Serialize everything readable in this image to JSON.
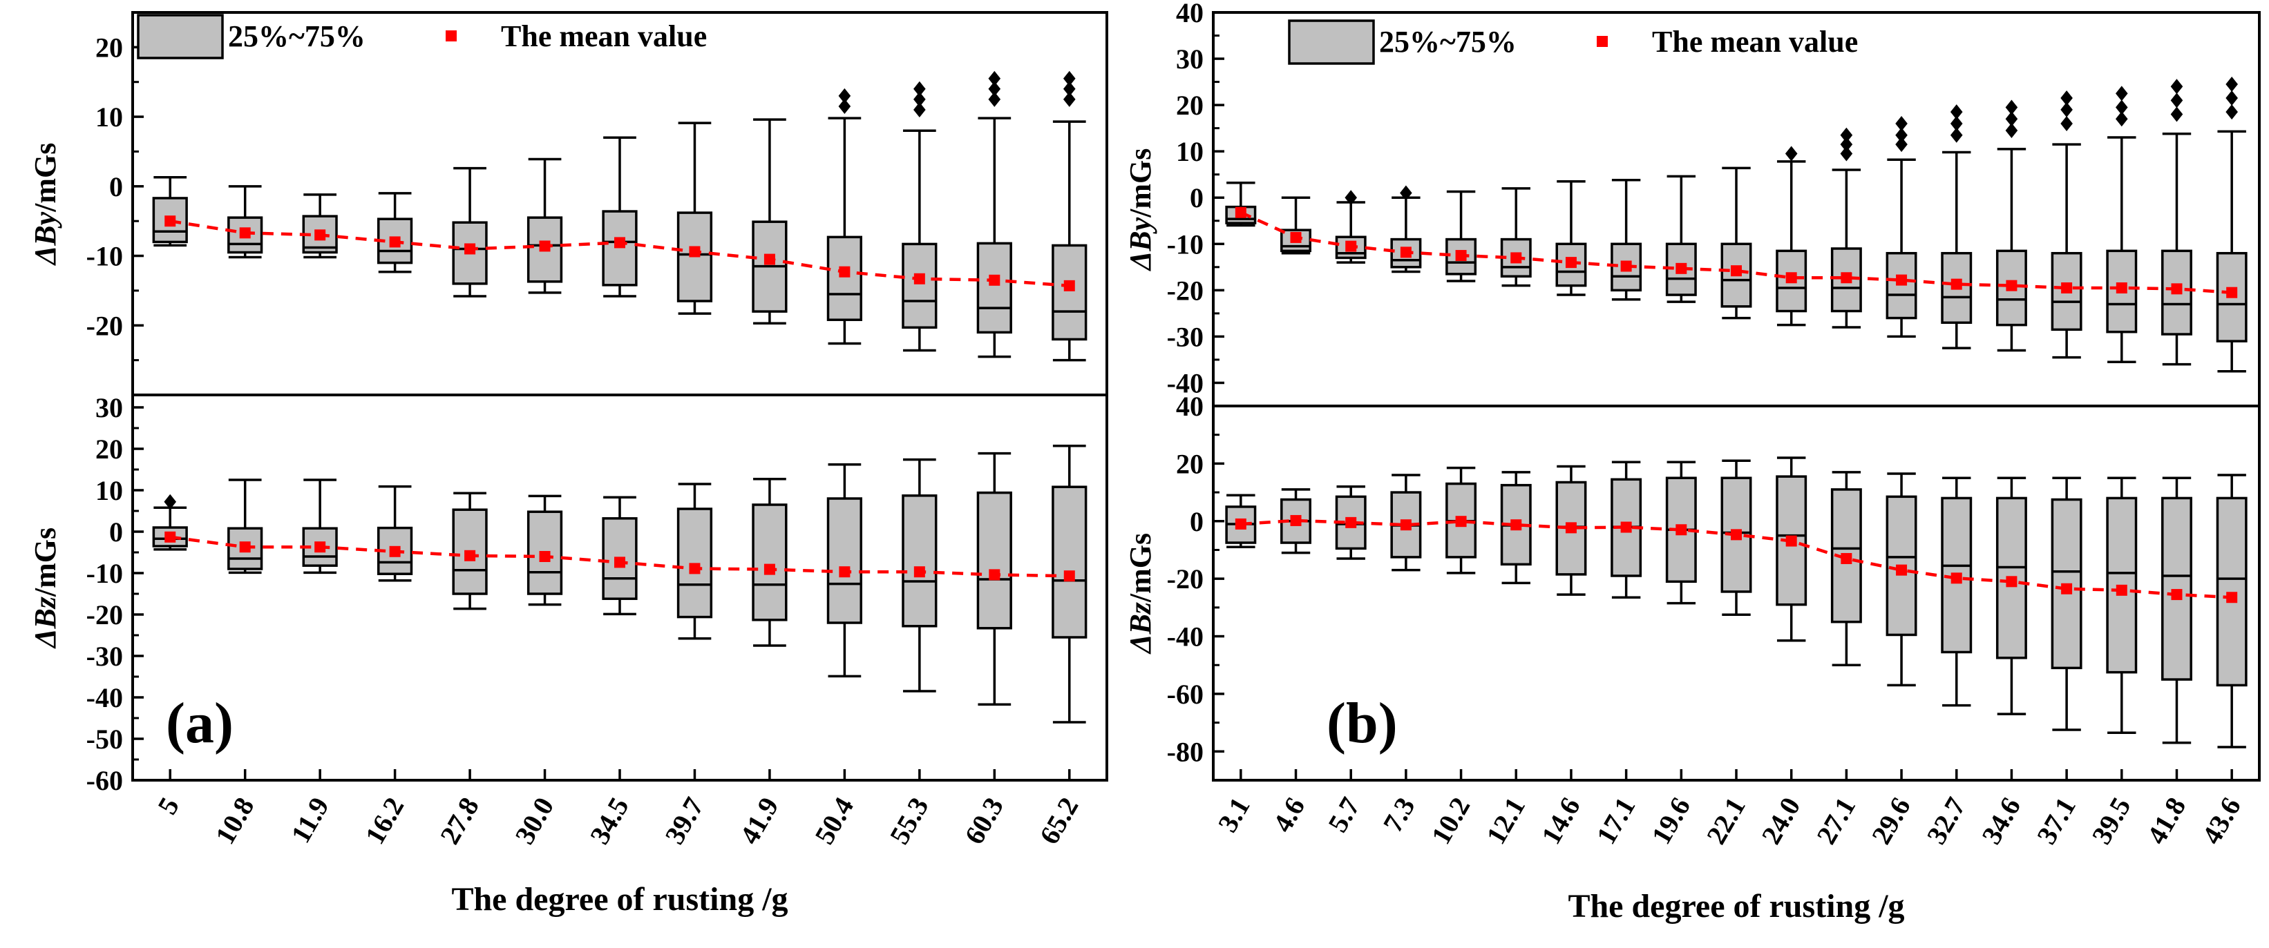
{
  "figure": {
    "legend": {
      "box_label": "25%~75%",
      "mean_label": "The mean value"
    },
    "colors": {
      "box_fill": "#c0c0c0",
      "mean": "#ff0000",
      "axis": "#000000"
    }
  },
  "chart_data": [
    {
      "type": "box",
      "panel": "(a)",
      "xlabel": "The degree of rusting /g",
      "categories": [
        "5",
        "10.8",
        "11.9",
        "16.2",
        "27.8",
        "30.0",
        "34.5",
        "39.7",
        "41.9",
        "50.4",
        "55.3",
        "60.3",
        "65.2"
      ],
      "subplots": [
        {
          "ylabel_symbol": "ΔBy",
          "ylabel_unit": "/mGs",
          "ylim": [
            -30,
            25
          ],
          "yticks": [
            -20,
            -10,
            0,
            10,
            20
          ],
          "tick_labels": [
            "-20",
            "-10",
            "0",
            "10",
            "20"
          ],
          "boxes": [
            {
              "low": -8.5,
              "q1": -8,
              "median": -6.5,
              "q3": -1.7,
              "high": 1.3,
              "mean": -5,
              "outliers": []
            },
            {
              "low": -10.2,
              "q1": -9.5,
              "median": -8.3,
              "q3": -4.5,
              "high": 0,
              "mean": -6.7,
              "outliers": []
            },
            {
              "low": -10.2,
              "q1": -9.5,
              "median": -8.8,
              "q3": -4.3,
              "high": -1.2,
              "mean": -7,
              "outliers": []
            },
            {
              "low": -12.3,
              "q1": -11,
              "median": -9.3,
              "q3": -4.7,
              "high": -1,
              "mean": -8,
              "outliers": []
            },
            {
              "low": -15.8,
              "q1": -14,
              "median": -9,
              "q3": -5.2,
              "high": 2.6,
              "mean": -9,
              "outliers": []
            },
            {
              "low": -15.3,
              "q1": -13.7,
              "median": -8.5,
              "q3": -4.5,
              "high": 3.9,
              "mean": -8.6,
              "outliers": []
            },
            {
              "low": -15.8,
              "q1": -14.2,
              "median": -8,
              "q3": -3.6,
              "high": 7,
              "mean": -8.1,
              "outliers": []
            },
            {
              "low": -18.3,
              "q1": -16.5,
              "median": -9.8,
              "q3": -3.8,
              "high": 9.1,
              "mean": -9.4,
              "outliers": []
            },
            {
              "low": -19.7,
              "q1": -18,
              "median": -11.5,
              "q3": -5.1,
              "high": 9.6,
              "mean": -10.5,
              "outliers": []
            },
            {
              "low": -22.6,
              "q1": -19.2,
              "median": -15.5,
              "q3": -7.3,
              "high": 9.8,
              "mean": -12.3,
              "outliers": [
                11.5,
                13
              ]
            },
            {
              "low": -23.6,
              "q1": -20.3,
              "median": -16.5,
              "q3": -8.3,
              "high": 8,
              "mean": -13.3,
              "outliers": [
                11,
                12.5,
                14
              ]
            },
            {
              "low": -24.5,
              "q1": -21,
              "median": -17.5,
              "q3": -8.2,
              "high": 9.8,
              "mean": -13.5,
              "outliers": [
                12.5,
                14,
                15.5
              ]
            },
            {
              "low": -25,
              "q1": -22,
              "median": -18,
              "q3": -8.5,
              "high": 9.3,
              "mean": -14.3,
              "outliers": [
                12.5,
                14,
                15.5
              ]
            }
          ]
        },
        {
          "ylabel_symbol": "ΔBz",
          "ylabel_unit": "/mGs",
          "ylim": [
            -60,
            33
          ],
          "yticks": [
            -60,
            -50,
            -40,
            -30,
            -20,
            -10,
            0,
            10,
            20,
            30
          ],
          "tick_labels": [
            "-60",
            "-50",
            "-40",
            "-30",
            "-20",
            "-10",
            "0",
            "10",
            "20",
            "30"
          ],
          "boxes": [
            {
              "low": -4.3,
              "q1": -3.5,
              "median": -1.7,
              "q3": 1,
              "high": 5.8,
              "mean": -1.3,
              "outliers": [
                7.2
              ]
            },
            {
              "low": -9.9,
              "q1": -9,
              "median": -6.5,
              "q3": 0.8,
              "high": 12.5,
              "mean": -3.7,
              "outliers": []
            },
            {
              "low": -9.9,
              "q1": -8.2,
              "median": -6,
              "q3": 0.8,
              "high": 12.5,
              "mean": -3.7,
              "outliers": []
            },
            {
              "low": -11.8,
              "q1": -10.2,
              "median": -7.4,
              "q3": 0.9,
              "high": 10.9,
              "mean": -4.8,
              "outliers": []
            },
            {
              "low": -18.6,
              "q1": -15,
              "median": -9.3,
              "q3": 5.3,
              "high": 9.3,
              "mean": -5.8,
              "outliers": []
            },
            {
              "low": -17.6,
              "q1": -15,
              "median": -9.8,
              "q3": 4.8,
              "high": 8.6,
              "mean": -6,
              "outliers": []
            },
            {
              "low": -19.9,
              "q1": -16.2,
              "median": -11.3,
              "q3": 3.2,
              "high": 8.3,
              "mean": -7.4,
              "outliers": []
            },
            {
              "low": -25.8,
              "q1": -20.6,
              "median": -12.8,
              "q3": 5.5,
              "high": 11.5,
              "mean": -8.9,
              "outliers": []
            },
            {
              "low": -27.5,
              "q1": -21.3,
              "median": -12.8,
              "q3": 6.5,
              "high": 12.7,
              "mean": -9.1,
              "outliers": []
            },
            {
              "low": -34.9,
              "q1": -22,
              "median": -12.6,
              "q3": 8,
              "high": 16.2,
              "mean": -9.7,
              "outliers": []
            },
            {
              "low": -38.5,
              "q1": -22.8,
              "median": -12,
              "q3": 8.7,
              "high": 17.4,
              "mean": -9.7,
              "outliers": []
            },
            {
              "low": -41.7,
              "q1": -23.3,
              "median": -11.5,
              "q3": 9.4,
              "high": 18.9,
              "mean": -10.4,
              "outliers": []
            },
            {
              "low": -46,
              "q1": -25.5,
              "median": -11.8,
              "q3": 10.8,
              "high": 20.7,
              "mean": -10.7,
              "outliers": []
            }
          ]
        }
      ]
    },
    {
      "type": "box",
      "panel": "(b)",
      "xlabel": "The degree of rusting /g",
      "categories": [
        "3.1",
        "4.6",
        "5.7",
        "7.3",
        "10.2",
        "12.1",
        "14.6",
        "17.1",
        "19.6",
        "22.1",
        "24.0",
        "27.1",
        "29.6",
        "32.7",
        "34.6",
        "37.1",
        "39.5",
        "41.8",
        "43.6"
      ],
      "subplots": [
        {
          "ylabel_symbol": "ΔBy",
          "ylabel_unit": "/mGs",
          "ylim": [
            -45,
            40
          ],
          "yticks": [
            -40,
            -30,
            -20,
            -10,
            0,
            10,
            20,
            30,
            40
          ],
          "tick_labels": [
            "-40",
            "-30",
            "-20",
            "-10",
            "0",
            "10",
            "20",
            "30",
            "40"
          ],
          "boxes": [
            {
              "low": -6,
              "q1": -5.5,
              "median": -4.6,
              "q3": -2,
              "high": 3.2,
              "mean": -3.2,
              "outliers": []
            },
            {
              "low": -12,
              "q1": -11.5,
              "median": -10.5,
              "q3": -7,
              "high": 0,
              "mean": -8.6,
              "outliers": []
            },
            {
              "low": -14,
              "q1": -13,
              "median": -12,
              "q3": -8.5,
              "high": -1,
              "mean": -10.5,
              "outliers": [
                0
              ]
            },
            {
              "low": -16,
              "q1": -15,
              "median": -13.5,
              "q3": -9,
              "high": 0,
              "mean": -11.8,
              "outliers": [
                1
              ]
            },
            {
              "low": -18,
              "q1": -16.5,
              "median": -14,
              "q3": -9,
              "high": 1.3,
              "mean": -12.5,
              "outliers": []
            },
            {
              "low": -19,
              "q1": -17,
              "median": -15,
              "q3": -9,
              "high": 2,
              "mean": -13,
              "outliers": []
            },
            {
              "low": -21,
              "q1": -19,
              "median": -16,
              "q3": -10,
              "high": 3.5,
              "mean": -14,
              "outliers": []
            },
            {
              "low": -22,
              "q1": -20,
              "median": -17,
              "q3": -10,
              "high": 3.8,
              "mean": -14.8,
              "outliers": []
            },
            {
              "low": -22.5,
              "q1": -21,
              "median": -17.5,
              "q3": -10,
              "high": 4.6,
              "mean": -15.3,
              "outliers": []
            },
            {
              "low": -26,
              "q1": -23.5,
              "median": -17.8,
              "q3": -10,
              "high": 6.4,
              "mean": -15.8,
              "outliers": []
            },
            {
              "low": -27.5,
              "q1": -24.5,
              "median": -19.5,
              "q3": -11.5,
              "high": 7.8,
              "mean": -17.3,
              "outliers": [
                9.5
              ]
            },
            {
              "low": -28,
              "q1": -24.5,
              "median": -19.5,
              "q3": -11,
              "high": 6,
              "mean": -17.3,
              "outliers": [
                9.5,
                11.5,
                13.5
              ]
            },
            {
              "low": -30,
              "q1": -26,
              "median": -21,
              "q3": -12,
              "high": 8.2,
              "mean": -17.8,
              "outliers": [
                11.5,
                13.5,
                16
              ]
            },
            {
              "low": -32.5,
              "q1": -27,
              "median": -21.5,
              "q3": -12,
              "high": 9.8,
              "mean": -18.7,
              "outliers": [
                13.5,
                16,
                18.5
              ]
            },
            {
              "low": -33,
              "q1": -27.5,
              "median": -22,
              "q3": -11.5,
              "high": 10.5,
              "mean": -19,
              "outliers": [
                14.5,
                17,
                19.5
              ]
            },
            {
              "low": -34.5,
              "q1": -28.5,
              "median": -22.5,
              "q3": -12,
              "high": 11.5,
              "mean": -19.5,
              "outliers": [
                16,
                19,
                21.5
              ]
            },
            {
              "low": -35.5,
              "q1": -29,
              "median": -23,
              "q3": -11.5,
              "high": 13,
              "mean": -19.5,
              "outliers": [
                17,
                19.5,
                22.5
              ]
            },
            {
              "low": -36,
              "q1": -29.5,
              "median": -23,
              "q3": -11.5,
              "high": 13.8,
              "mean": -19.7,
              "outliers": [
                18,
                21,
                24
              ]
            },
            {
              "low": -37.5,
              "q1": -31,
              "median": -23,
              "q3": -12,
              "high": 14.3,
              "mean": -20.5,
              "outliers": [
                18.5,
                21.5,
                24.5
              ]
            }
          ]
        },
        {
          "ylabel_symbol": "ΔBz",
          "ylabel_unit": "/mGs",
          "ylim": [
            -90,
            40
          ],
          "yticks": [
            -80,
            -60,
            -40,
            -20,
            0,
            20,
            40
          ],
          "tick_labels": [
            "-80",
            "-60",
            "-40",
            "-20",
            "0",
            "20",
            "40"
          ],
          "boxes": [
            {
              "low": -9,
              "q1": -7.5,
              "median": -1,
              "q3": 5,
              "high": 9,
              "mean": -1,
              "outliers": []
            },
            {
              "low": -11,
              "q1": -7.5,
              "median": 0,
              "q3": 7.5,
              "high": 11,
              "mean": 0.2,
              "outliers": []
            },
            {
              "low": -13,
              "q1": -9.5,
              "median": -1,
              "q3": 8.5,
              "high": 12,
              "mean": -0.5,
              "outliers": []
            },
            {
              "low": -17,
              "q1": -12.5,
              "median": -1.5,
              "q3": 10,
              "high": 16,
              "mean": -1.3,
              "outliers": []
            },
            {
              "low": -18,
              "q1": -12.5,
              "median": 0,
              "q3": 13,
              "high": 18.5,
              "mean": -0.1,
              "outliers": []
            },
            {
              "low": -21.5,
              "q1": -15,
              "median": -1.5,
              "q3": 12.5,
              "high": 17,
              "mean": -1.3,
              "outliers": []
            },
            {
              "low": -25.5,
              "q1": -18.5,
              "median": -2,
              "q3": 13.5,
              "high": 19,
              "mean": -2.3,
              "outliers": []
            },
            {
              "low": -26.5,
              "q1": -19,
              "median": -2,
              "q3": 14.5,
              "high": 20.5,
              "mean": -2.1,
              "outliers": []
            },
            {
              "low": -28.5,
              "q1": -21,
              "median": -3,
              "q3": 15,
              "high": 20.5,
              "mean": -3,
              "outliers": []
            },
            {
              "low": -32.5,
              "q1": -24.5,
              "median": -4,
              "q3": 15,
              "high": 21,
              "mean": -4.7,
              "outliers": []
            },
            {
              "low": -41.5,
              "q1": -29,
              "median": -5,
              "q3": 15.5,
              "high": 22,
              "mean": -6.9,
              "outliers": []
            },
            {
              "low": -50,
              "q1": -35,
              "median": -9.5,
              "q3": 11,
              "high": 17,
              "mean": -13,
              "outliers": []
            },
            {
              "low": -57,
              "q1": -39.5,
              "median": -12.5,
              "q3": 8.5,
              "high": 16.5,
              "mean": -17,
              "outliers": []
            },
            {
              "low": -64,
              "q1": -45.5,
              "median": -15.5,
              "q3": 8,
              "high": 15,
              "mean": -19.8,
              "outliers": []
            },
            {
              "low": -67,
              "q1": -47.5,
              "median": -16,
              "q3": 8,
              "high": 15,
              "mean": -21,
              "outliers": []
            },
            {
              "low": -72.5,
              "q1": -51,
              "median": -17.5,
              "q3": 7.5,
              "high": 15,
              "mean": -23.5,
              "outliers": []
            },
            {
              "low": -73.5,
              "q1": -52.5,
              "median": -18,
              "q3": 8,
              "high": 15,
              "mean": -24,
              "outliers": []
            },
            {
              "low": -77,
              "q1": -55,
              "median": -19,
              "q3": 8,
              "high": 15,
              "mean": -25.5,
              "outliers": []
            },
            {
              "low": -78.5,
              "q1": -57,
              "median": -20,
              "q3": 8,
              "high": 16,
              "mean": -26.5,
              "outliers": []
            }
          ]
        }
      ]
    }
  ]
}
